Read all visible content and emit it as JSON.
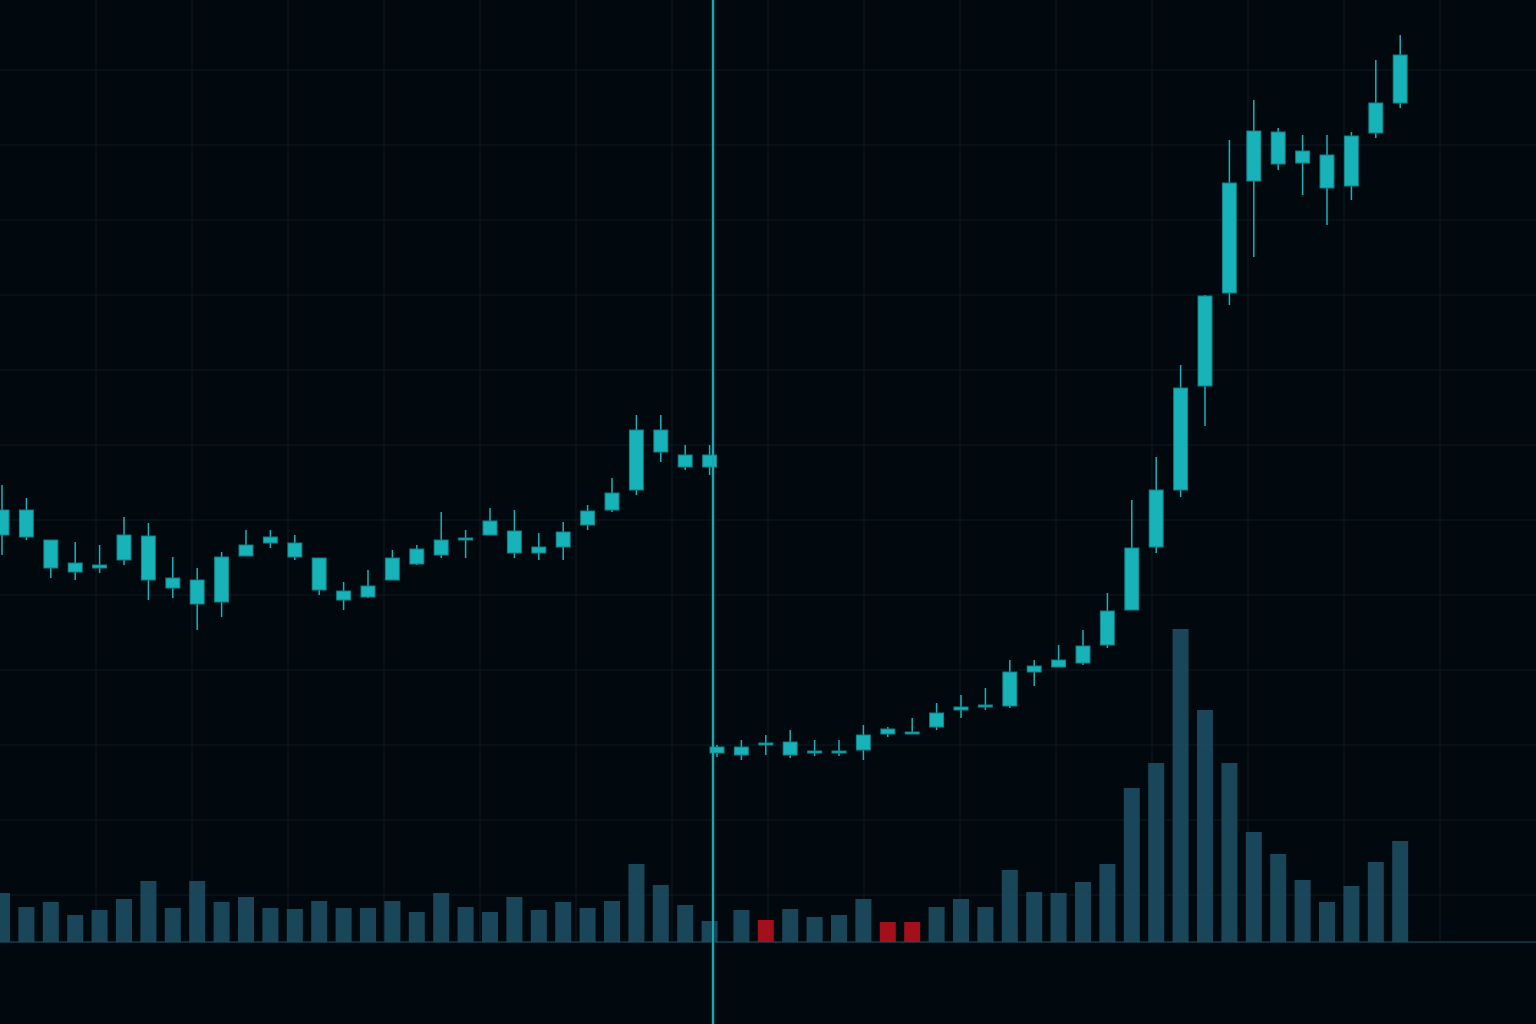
{
  "chart_data": {
    "type": "candlestick",
    "open": [
      489,
      487,
      456,
      452,
      456,
      464,
      444,
      436,
      420,
      422,
      468,
      481,
      467,
      434,
      424,
      427,
      444,
      460,
      469,
      484,
      489,
      471,
      471,
      477,
      499,
      514,
      534,
      572,
      557,
      557,
      271,
      269,
      279,
      269,
      271,
      271,
      274,
      290,
      290,
      297,
      314,
      317,
      318,
      352,
      357,
      361,
      379,
      414,
      477,
      534,
      638,
      731,
      843,
      860,
      861,
      836,
      838,
      891,
      921
    ],
    "high": [
      539,
      526,
      484,
      482,
      479,
      507,
      501,
      467,
      456,
      472,
      494,
      494,
      489,
      466,
      442,
      454,
      474,
      479,
      512,
      494,
      516,
      514,
      491,
      502,
      519,
      546,
      609,
      609,
      579,
      579,
      279,
      284,
      289,
      294,
      284,
      284,
      299,
      297,
      306,
      321,
      329,
      336,
      364,
      364,
      379,
      394,
      431,
      524,
      567,
      659,
      729,
      884,
      924,
      896,
      889,
      889,
      892,
      964,
      989
    ],
    "low": [
      469,
      484,
      446,
      444,
      451,
      459,
      424,
      426,
      394,
      407,
      468,
      476,
      464,
      429,
      414,
      426,
      444,
      459,
      466,
      466,
      489,
      466,
      464,
      464,
      494,
      512,
      529,
      562,
      554,
      549,
      267,
      264,
      269,
      266,
      268,
      268,
      264,
      287,
      290,
      294,
      306,
      314,
      316,
      338,
      357,
      359,
      376,
      414,
      471,
      527,
      598,
      719,
      767,
      854,
      829,
      799,
      824,
      886,
      916
    ],
    "close": [
      514,
      514,
      484,
      461,
      459,
      489,
      488,
      446,
      444,
      467,
      479,
      487,
      481,
      466,
      433,
      438,
      466,
      475,
      484,
      486,
      503,
      493,
      477,
      492,
      513,
      531,
      594,
      594,
      569,
      569,
      277,
      277,
      281,
      282,
      273,
      273,
      289,
      295,
      292,
      311,
      317,
      319,
      352,
      358,
      364,
      378,
      413,
      476,
      534,
      636,
      728,
      841,
      893,
      892,
      873,
      869,
      888,
      921,
      969
    ],
    "color": "#17b3b8",
    "ylim": [
      0,
      1024
    ],
    "volume": [
      49,
      35,
      40,
      27,
      32,
      43,
      61,
      34,
      61,
      40,
      45,
      34,
      33,
      41,
      34,
      34,
      41,
      30,
      49,
      35,
      30,
      45,
      32,
      40,
      34,
      41,
      78,
      57,
      37,
      21,
      null,
      32,
      22,
      33,
      25,
      27,
      43,
      20,
      20,
      35,
      43,
      35,
      72,
      50,
      49,
      60,
      78,
      154,
      179,
      313,
      232,
      179,
      110,
      88,
      62,
      40,
      56,
      80,
      101
    ],
    "volume_colors": [
      "#1d5266",
      "#1d5266",
      "#1d5266",
      "#1d5266",
      "#1d5266",
      "#1d5266",
      "#1d5266",
      "#1d5266",
      "#1d5266",
      "#1d5266",
      "#1d5266",
      "#1d5266",
      "#1d5266",
      "#1d5266",
      "#1d5266",
      "#1d5266",
      "#1d5266",
      "#1d5266",
      "#1d5266",
      "#1d5266",
      "#1d5266",
      "#1d5266",
      "#1d5266",
      "#1d5266",
      "#1d5266",
      "#1d5266",
      "#1d5266",
      "#1d5266",
      "#1d5266",
      "#1d5266",
      "#1d5266",
      "#1d5266",
      "#c0121f",
      "#1d5266",
      "#1d5266",
      "#1d5266",
      "#1d5266",
      "#c0121f",
      "#c0121f",
      "#1d5266",
      "#1d5266",
      "#1d5266",
      "#1d5266",
      "#1d5266",
      "#1d5266",
      "#1d5266",
      "#1d5266",
      "#1d5266",
      "#1d5266",
      "#1d5266",
      "#1d5266",
      "#1d5266",
      "#1d5266",
      "#1d5266",
      "#1d5266",
      "#1d5266",
      "#1d5266",
      "#1d5266",
      "#1d5266"
    ],
    "volume_ylim": [
      0,
      942
    ],
    "grid": true
  }
}
